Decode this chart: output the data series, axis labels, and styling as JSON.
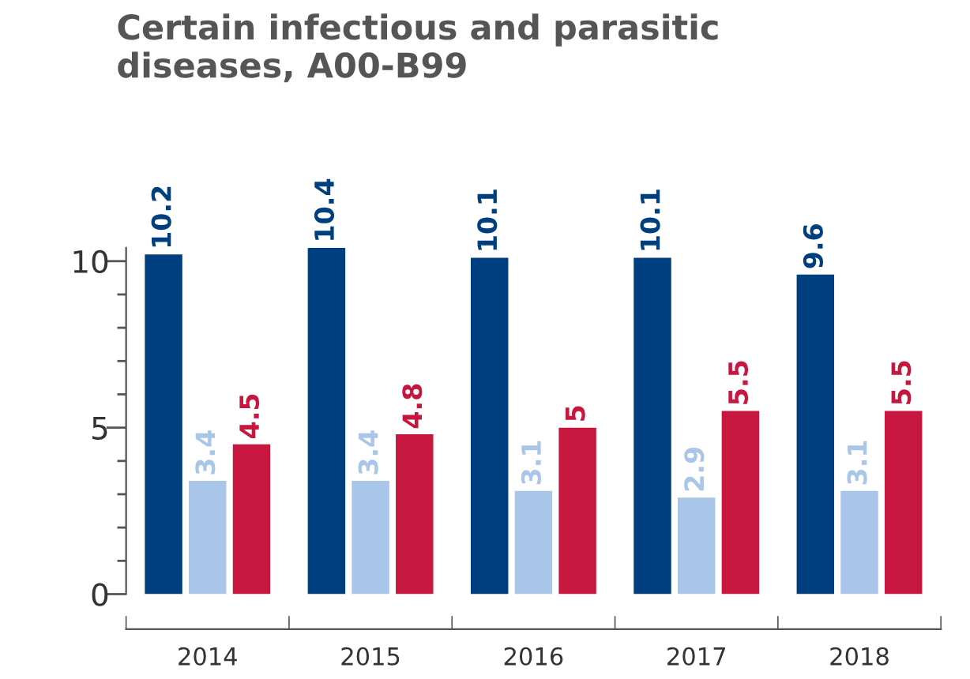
{
  "chart_data": {
    "type": "bar",
    "title": "Certain infectious and parasitic\ndiseases, A00-B99",
    "categories": [
      "2014",
      "2015",
      "2016",
      "2017",
      "2018"
    ],
    "series": [
      {
        "color": "#003f7f",
        "values": [
          10.2,
          10.4,
          10.1,
          10.1,
          9.6
        ]
      },
      {
        "color": "#a9c5e8",
        "values": [
          3.4,
          3.4,
          3.1,
          2.9,
          3.1
        ]
      },
      {
        "color": "#c8173f",
        "values": [
          4.5,
          4.8,
          5,
          5.5,
          5.5
        ]
      }
    ],
    "ylim": [
      0,
      10.4
    ],
    "yticks": [
      0,
      {
        "value": 1,
        "label": null
      },
      {
        "value": 2,
        "label": null
      },
      {
        "value": 3,
        "label": null
      },
      {
        "value": 4,
        "label": null
      },
      5,
      {
        "value": 6,
        "label": null
      },
      {
        "value": 7,
        "label": null
      },
      {
        "value": 8,
        "label": null
      },
      {
        "value": 9,
        "label": null
      },
      10
    ],
    "data_labels": true,
    "grid": false,
    "legend": false
  }
}
